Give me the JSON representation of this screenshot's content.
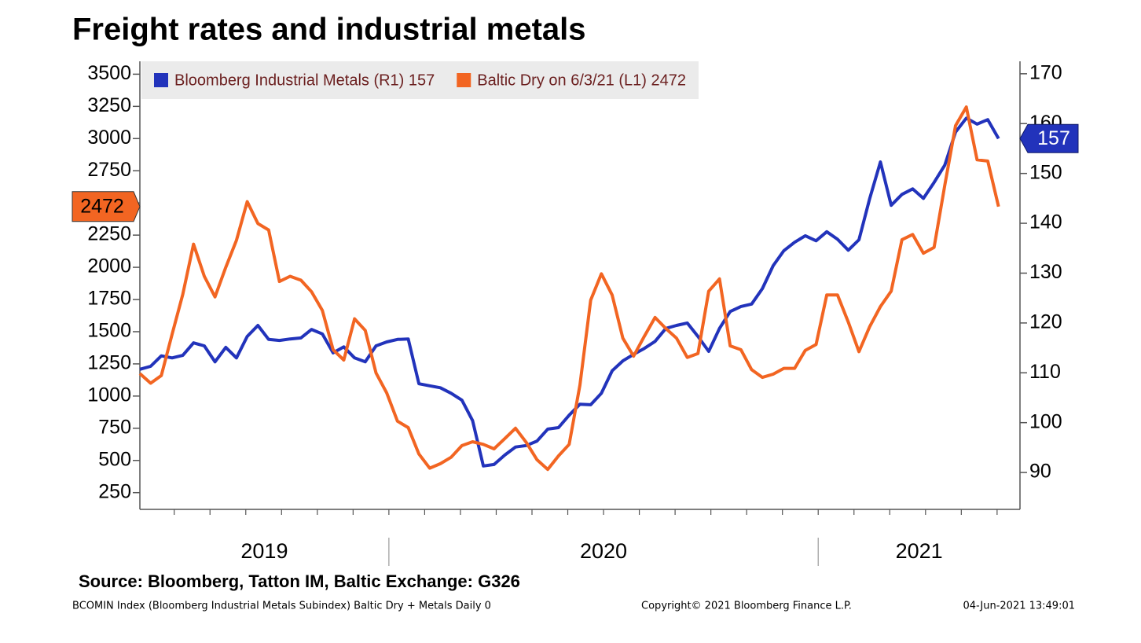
{
  "chart_data": {
    "type": "line",
    "title": "Freight rates and industrial metals",
    "source": "Source: Bloomberg, Tatton IM, Baltic Exchange: G326",
    "notes": [
      "BCOMIN Index (Bloomberg Industrial Metals Subindex) Baltic Dry + Metals  Daily 0",
      "Copyright© 2021 Bloomberg Finance L.P.",
      "04-Jun-2021 13:49:01"
    ],
    "legend": "upper left",
    "x": [
      2019.42,
      2019.445,
      2019.47,
      2019.495,
      2019.52,
      2019.545,
      2019.57,
      2019.595,
      2019.62,
      2019.645,
      2019.67,
      2019.695,
      2019.72,
      2019.745,
      2019.77,
      2019.795,
      2019.82,
      2019.845,
      2019.87,
      2019.895,
      2019.92,
      2019.945,
      2019.97,
      2019.995,
      2020.02,
      2020.045,
      2020.07,
      2020.095,
      2020.12,
      2020.145,
      2020.17,
      2020.195,
      2020.22,
      2020.245,
      2020.27,
      2020.295,
      2020.32,
      2020.345,
      2020.37,
      2020.395,
      2020.42,
      2020.445,
      2020.47,
      2020.495,
      2020.52,
      2020.545,
      2020.57,
      2020.595,
      2020.62,
      2020.645,
      2020.67,
      2020.695,
      2020.72,
      2020.745,
      2020.77,
      2020.795,
      2020.82,
      2020.845,
      2020.87,
      2020.895,
      2020.92,
      2020.945,
      2020.97,
      2020.995,
      2021.02,
      2021.045,
      2021.07,
      2021.095,
      2021.12,
      2021.145,
      2021.17,
      2021.195,
      2021.22,
      2021.245,
      2021.27,
      2021.295,
      2021.32,
      2021.345,
      2021.37,
      2021.395,
      2021.42
    ],
    "xlim": [
      2019.42,
      2021.47
    ],
    "xticks": [
      2020,
      2021
    ],
    "year_labels": [
      2019,
      2020,
      2021
    ],
    "ylim": [
      120,
      3600
    ],
    "yticks": [
      250,
      500,
      750,
      1000,
      1250,
      1500,
      1750,
      2000,
      2250,
      2500,
      2750,
      3000,
      3250,
      3500
    ],
    "y2lim": [
      82.6,
      172.5
    ],
    "y2ticks": [
      90,
      100,
      110,
      120,
      130,
      140,
      150,
      160,
      170
    ],
    "series": [
      {
        "name": "Bloomberg Industrial Metals (R1) 157",
        "color": "#2233bb",
        "axis": "y2",
        "values": [
          110.7,
          111.3,
          113.4,
          113.0,
          113.5,
          116.0,
          115.4,
          112.2,
          115.1,
          113.0,
          117.3,
          119.5,
          116.7,
          116.5,
          116.8,
          117.0,
          118.7,
          117.8,
          114.0,
          115.2,
          113.0,
          112.2,
          115.4,
          116.2,
          116.7,
          116.8,
          107.8,
          107.4,
          107.0,
          105.9,
          104.5,
          100.4,
          91.3,
          91.6,
          93.5,
          95.1,
          95.4,
          96.3,
          98.7,
          99.0,
          101.5,
          103.7,
          103.6,
          105.9,
          110.4,
          112.4,
          113.7,
          114.9,
          116.3,
          118.9,
          119.5,
          120.0,
          117.3,
          114.3,
          118.9,
          122.3,
          123.3,
          123.8,
          126.9,
          131.5,
          134.5,
          136.2,
          137.5,
          136.5,
          138.3,
          136.8,
          134.6,
          136.7,
          145.0,
          152.3,
          143.6,
          145.8,
          146.9,
          145.0,
          148.2,
          151.7,
          158.3,
          161.1,
          159.9,
          160.8,
          157
        ]
      },
      {
        "name": "Baltic Dry on 6/3/21 (L1) 2472",
        "color": "#f26522",
        "values": [
          1175,
          1100,
          1160,
          1480,
          1790,
          2180,
          1930,
          1770,
          2000,
          2210,
          2510,
          2340,
          2290,
          1890,
          1930,
          1900,
          1810,
          1665,
          1360,
          1280,
          1600,
          1510,
          1180,
          1025,
          805,
          755,
          550,
          440,
          475,
          525,
          615,
          645,
          625,
          590,
          670,
          750,
          640,
          505,
          430,
          535,
          625,
          1085,
          1745,
          1950,
          1785,
          1450,
          1310,
          1465,
          1610,
          1525,
          1450,
          1300,
          1330,
          1815,
          1910,
          1390,
          1360,
          1205,
          1145,
          1170,
          1215,
          1215,
          1355,
          1400,
          1785,
          1785,
          1575,
          1345,
          1540,
          1695,
          1815,
          2215,
          2255,
          2110,
          2155,
          2640,
          3100,
          3245,
          2835,
          2825,
          2472
        ]
      }
    ]
  }
}
